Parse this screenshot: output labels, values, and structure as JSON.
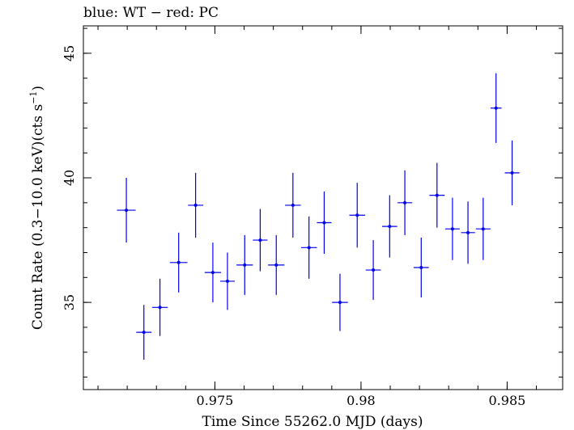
{
  "chart_data": {
    "type": "scatter",
    "title": "blue: WT − red: PC",
    "xlabel": "Time Since 55262.0 MJD (days)",
    "ylabel_main": "Count Rate (0.3−10.0 keV)(cts s",
    "ylabel_sup": "−1",
    "ylabel_end": ")",
    "xlim": [
      0.9705,
      0.9869
    ],
    "ylim": [
      31.5,
      46.1
    ],
    "x_ticks": [
      {
        "value": 0.975,
        "label": "0.975"
      },
      {
        "value": 0.98,
        "label": "0.98"
      },
      {
        "value": 0.985,
        "label": "0.985"
      }
    ],
    "y_ticks": [
      {
        "value": 35,
        "label": "35"
      },
      {
        "value": 40,
        "label": "40"
      },
      {
        "value": 45,
        "label": "45"
      }
    ],
    "x_minor_step": 0.001,
    "y_minor_step": 1,
    "grid": false,
    "series": [
      {
        "color": "#0000ee",
        "points": [
          {
            "x": 0.97197,
            "xerr": 0.00032,
            "y": 38.7,
            "yerr": 1.3
          },
          {
            "x": 0.97257,
            "xerr": 0.00026,
            "y": 33.8,
            "yerr": 1.1
          },
          {
            "x": 0.97312,
            "xerr": 0.00027,
            "y": 34.8,
            "yerr": 1.15
          },
          {
            "x": 0.97376,
            "xerr": 0.0003,
            "y": 36.6,
            "yerr": 1.2
          },
          {
            "x": 0.97434,
            "xerr": 0.00026,
            "y": 38.9,
            "yerr": 1.3
          },
          {
            "x": 0.97493,
            "xerr": 0.00028,
            "y": 36.2,
            "yerr": 1.2
          },
          {
            "x": 0.97543,
            "xerr": 0.00025,
            "y": 35.85,
            "yerr": 1.15
          },
          {
            "x": 0.97602,
            "xerr": 0.00028,
            "y": 36.5,
            "yerr": 1.2
          },
          {
            "x": 0.97655,
            "xerr": 0.00025,
            "y": 37.5,
            "yerr": 1.25
          },
          {
            "x": 0.9771,
            "xerr": 0.00028,
            "y": 36.5,
            "yerr": 1.2
          },
          {
            "x": 0.97767,
            "xerr": 0.00027,
            "y": 38.9,
            "yerr": 1.3
          },
          {
            "x": 0.97822,
            "xerr": 0.00027,
            "y": 37.2,
            "yerr": 1.25
          },
          {
            "x": 0.97874,
            "xerr": 0.00025,
            "y": 38.2,
            "yerr": 1.25
          },
          {
            "x": 0.97928,
            "xerr": 0.00027,
            "y": 35.0,
            "yerr": 1.15
          },
          {
            "x": 0.97987,
            "xerr": 0.00027,
            "y": 38.5,
            "yerr": 1.3
          },
          {
            "x": 0.98042,
            "xerr": 0.00026,
            "y": 36.3,
            "yerr": 1.2
          },
          {
            "x": 0.98098,
            "xerr": 0.00026,
            "y": 38.05,
            "yerr": 1.25
          },
          {
            "x": 0.9815,
            "xerr": 0.00025,
            "y": 39.0,
            "yerr": 1.3
          },
          {
            "x": 0.98206,
            "xerr": 0.00026,
            "y": 36.4,
            "yerr": 1.2
          },
          {
            "x": 0.9826,
            "xerr": 0.00026,
            "y": 39.3,
            "yerr": 1.3
          },
          {
            "x": 0.98313,
            "xerr": 0.00025,
            "y": 37.95,
            "yerr": 1.25
          },
          {
            "x": 0.98366,
            "xerr": 0.00024,
            "y": 37.8,
            "yerr": 1.25
          },
          {
            "x": 0.98418,
            "xerr": 0.00025,
            "y": 37.95,
            "yerr": 1.25
          },
          {
            "x": 0.98462,
            "xerr": 0.00019,
            "y": 42.8,
            "yerr": 1.4
          },
          {
            "x": 0.98517,
            "xerr": 0.00025,
            "y": 40.2,
            "yerr": 1.3
          }
        ]
      }
    ]
  }
}
